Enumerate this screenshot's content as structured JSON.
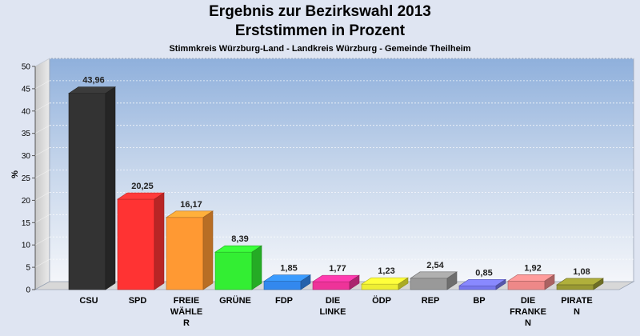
{
  "header": {
    "title": "Ergebnis zur Bezirkswahl 2013",
    "subtitle": "Erststimmen in Prozent",
    "caption": "Stimmkreis Würzburg-Land - Landkreis Würzburg - Gemeinde Theilheim"
  },
  "chart_data": {
    "type": "bar",
    "title": "Ergebnis zur Bezirkswahl 2013",
    "subtitle": "Erststimmen in Prozent",
    "caption": "Stimmkreis Würzburg-Land - Landkreis Würzburg - Gemeinde Theilheim",
    "xlabel": "",
    "ylabel": "%",
    "ylim": [
      0,
      50
    ],
    "yticks": [
      "0",
      "5",
      "10",
      "15",
      "20",
      "25",
      "30",
      "35",
      "40",
      "45",
      "50"
    ],
    "grid": true,
    "categories": [
      [
        "CSU"
      ],
      [
        "SPD"
      ],
      [
        "FREIE",
        "WÄHLE",
        "R"
      ],
      [
        "GRÜNE"
      ],
      [
        "FDP"
      ],
      [
        "DIE",
        "LINKE"
      ],
      [
        "ÖDP"
      ],
      [
        "REP"
      ],
      [
        "BP"
      ],
      [
        "DIE",
        "FRANKE",
        "N"
      ],
      [
        "PIRATE",
        "N"
      ]
    ],
    "values": [
      43.96,
      20.25,
      16.17,
      8.39,
      1.85,
      1.77,
      1.23,
      2.54,
      0.85,
      1.92,
      1.08
    ],
    "value_labels": [
      "43,96",
      "20,25",
      "16,17",
      "8,39",
      "1,85",
      "1,77",
      "1,23",
      "2,54",
      "0,85",
      "1,92",
      "1,08"
    ],
    "colors": [
      "#333333",
      "#ff3333",
      "#ff9933",
      "#33ee33",
      "#3388ee",
      "#ee3399",
      "#eeee33",
      "#999999",
      "#7777ee",
      "#ee8888",
      "#999933"
    ]
  }
}
